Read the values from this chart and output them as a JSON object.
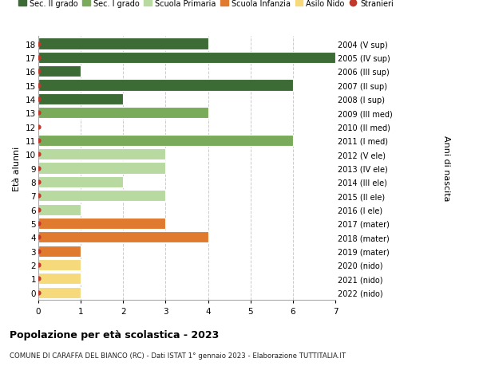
{
  "ages": [
    18,
    17,
    16,
    15,
    14,
    13,
    12,
    11,
    10,
    9,
    8,
    7,
    6,
    5,
    4,
    3,
    2,
    1,
    0
  ],
  "right_labels": [
    "2004 (V sup)",
    "2005 (IV sup)",
    "2006 (III sup)",
    "2007 (II sup)",
    "2008 (I sup)",
    "2009 (III med)",
    "2010 (II med)",
    "2011 (I med)",
    "2012 (V ele)",
    "2013 (IV ele)",
    "2014 (III ele)",
    "2015 (II ele)",
    "2016 (I ele)",
    "2017 (mater)",
    "2018 (mater)",
    "2019 (mater)",
    "2020 (nido)",
    "2021 (nido)",
    "2022 (nido)"
  ],
  "bar_values": [
    4,
    7,
    1,
    6,
    2,
    4,
    0,
    6,
    3,
    3,
    2,
    3,
    1,
    3,
    4,
    1,
    1,
    1,
    1
  ],
  "bar_colors": [
    "#3d6b35",
    "#3d6b35",
    "#3d6b35",
    "#3d6b35",
    "#3d6b35",
    "#7aab5a",
    "#7aab5a",
    "#7aab5a",
    "#b8d9a0",
    "#b8d9a0",
    "#b8d9a0",
    "#b8d9a0",
    "#b8d9a0",
    "#e07a2f",
    "#e07a2f",
    "#e07a2f",
    "#f5d97a",
    "#f5d97a",
    "#f5d97a"
  ],
  "dot_color": "#c0392b",
  "legend_labels": [
    "Sec. II grado",
    "Sec. I grado",
    "Scuola Primaria",
    "Scuola Infanzia",
    "Asilo Nido",
    "Stranieri"
  ],
  "legend_colors": [
    "#3d6b35",
    "#7aab5a",
    "#b8d9a0",
    "#e07a2f",
    "#f5d97a",
    "#c0392b"
  ],
  "legend_markers": [
    "s",
    "s",
    "s",
    "s",
    "s",
    "o"
  ],
  "ylabel_left": "Età alunni",
  "ylabel_right": "Anni di nascita",
  "title": "Popolazione per età scolastica - 2023",
  "subtitle": "COMUNE DI CARAFFA DEL BIANCO (RC) - Dati ISTAT 1° gennaio 2023 - Elaborazione TUTTITALIA.IT",
  "xlim": [
    0,
    7
  ],
  "ylim_low": -0.55,
  "ylim_high": 18.55,
  "background_color": "#ffffff",
  "grid_color": "#cccccc"
}
